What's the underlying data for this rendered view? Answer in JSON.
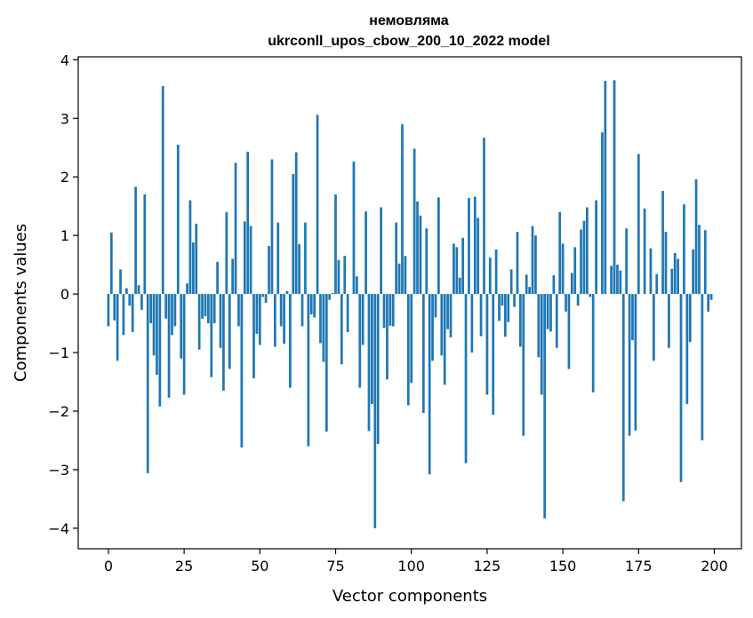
{
  "chart_data": {
    "type": "bar",
    "title": "немовляма",
    "subtitle": "ukrconll_upos_cbow_200_10_2022 model",
    "xlabel": "Vector components",
    "ylabel": "Components values",
    "xlim": [
      -9.95,
      208.95
    ],
    "ylim": [
      -4.35,
      4.05
    ],
    "xticks": [
      0,
      25,
      50,
      75,
      100,
      125,
      150,
      175,
      200
    ],
    "xtick_labels": [
      "0",
      "25",
      "50",
      "75",
      "100",
      "125",
      "150",
      "175",
      "200"
    ],
    "yticks": [
      -4,
      -3,
      -2,
      -1,
      0,
      1,
      2,
      3,
      4
    ],
    "ytick_labels": [
      "−4",
      "−3",
      "−2",
      "−1",
      "0",
      "1",
      "2",
      "3",
      "4"
    ],
    "grid": false,
    "bar_color": "#1f77b4",
    "x": [
      0,
      1,
      2,
      3,
      4,
      5,
      6,
      7,
      8,
      9,
      10,
      11,
      12,
      13,
      14,
      15,
      16,
      17,
      18,
      19,
      20,
      21,
      22,
      23,
      24,
      25,
      26,
      27,
      28,
      29,
      30,
      31,
      32,
      33,
      34,
      35,
      36,
      37,
      38,
      39,
      40,
      41,
      42,
      43,
      44,
      45,
      46,
      47,
      48,
      49,
      50,
      51,
      52,
      53,
      54,
      55,
      56,
      57,
      58,
      59,
      60,
      61,
      62,
      63,
      64,
      65,
      66,
      67,
      68,
      69,
      70,
      71,
      72,
      73,
      74,
      75,
      76,
      77,
      78,
      79,
      80,
      81,
      82,
      83,
      84,
      85,
      86,
      87,
      88,
      89,
      90,
      91,
      92,
      93,
      94,
      95,
      96,
      97,
      98,
      99,
      100,
      101,
      102,
      103,
      104,
      105,
      106,
      107,
      108,
      109,
      110,
      111,
      112,
      113,
      114,
      115,
      116,
      117,
      118,
      119,
      120,
      121,
      122,
      123,
      124,
      125,
      126,
      127,
      128,
      129,
      130,
      131,
      132,
      133,
      134,
      135,
      136,
      137,
      138,
      139,
      140,
      141,
      142,
      143,
      144,
      145,
      146,
      147,
      148,
      149,
      150,
      151,
      152,
      153,
      154,
      155,
      156,
      157,
      158,
      159,
      160,
      161,
      162,
      163,
      164,
      165,
      166,
      167,
      168,
      169,
      170,
      171,
      172,
      173,
      174,
      175,
      176,
      177,
      178,
      179,
      180,
      181,
      182,
      183,
      184,
      185,
      186,
      187,
      188,
      189,
      190,
      191,
      192,
      193,
      194,
      195,
      196,
      197,
      198,
      199
    ],
    "values": [
      -0.55,
      1.05,
      -0.45,
      -1.14,
      0.42,
      -0.7,
      0.1,
      -0.2,
      -0.65,
      1.83,
      0.15,
      -0.27,
      1.7,
      -3.06,
      -0.5,
      -1.05,
      -1.38,
      -1.92,
      3.55,
      -0.42,
      -1.77,
      -0.7,
      -0.55,
      2.55,
      -1.1,
      -1.72,
      0.18,
      1.6,
      0.88,
      1.2,
      -0.95,
      -0.42,
      -0.38,
      -0.5,
      -1.42,
      -0.5,
      0.55,
      -0.92,
      -1.65,
      1.4,
      -1.28,
      0.6,
      2.24,
      -0.55,
      -2.62,
      1.24,
      2.43,
      1.16,
      -1.44,
      -0.68,
      -0.87,
      -0.05,
      -0.15,
      0.82,
      2.3,
      -0.9,
      1.22,
      -0.55,
      -0.85,
      0.05,
      -1.6,
      2.05,
      2.42,
      0.85,
      -0.55,
      1.22,
      -2.6,
      -0.35,
      -0.4,
      3.06,
      -0.84,
      -1.16,
      -2.35,
      -0.1,
      0.02,
      1.7,
      0.58,
      -1.2,
      0.65,
      -0.65,
      0.0,
      2.26,
      0.3,
      -1.6,
      -0.87,
      1.41,
      -2.34,
      -1.88,
      -4.0,
      -2.56,
      1.48,
      -0.58,
      -1.46,
      -0.54,
      -0.55,
      1.22,
      0.52,
      2.9,
      0.65,
      -1.9,
      -1.52,
      2.48,
      1.58,
      1.34,
      -2.03,
      1.12,
      -3.08,
      -1.14,
      -0.4,
      1.65,
      -1.05,
      -1.55,
      -0.6,
      -0.74,
      0.86,
      0.8,
      0.28,
      0.96,
      -2.89,
      1.64,
      -1.0,
      1.66,
      1.3,
      -0.72,
      2.67,
      -1.72,
      0.62,
      -2.06,
      0.76,
      -0.46,
      -0.2,
      -0.73,
      -0.48,
      0.42,
      -0.22,
      1.06,
      -0.9,
      -2.42,
      0.33,
      0.12,
      1.16,
      1.0,
      -1.08,
      -1.72,
      -3.83,
      -0.6,
      -0.64,
      0.32,
      -0.92,
      1.4,
      0.86,
      -0.3,
      -1.28,
      0.36,
      0.8,
      -0.2,
      1.1,
      1.25,
      1.48,
      -0.05,
      -1.68,
      1.6,
      0.0,
      2.76,
      3.64,
      0.0,
      0.48,
      3.65,
      0.5,
      0.4,
      -3.54,
      1.12,
      -2.42,
      -0.79,
      -2.33,
      2.39,
      0.0,
      1.46,
      0.0,
      0.78,
      -1.14,
      0.34,
      0.0,
      1.76,
      1.06,
      -0.92,
      0.43,
      0.7,
      0.6,
      -3.21,
      1.53,
      -1.88,
      -0.82,
      0.76,
      1.96,
      1.18,
      -2.5,
      1.09,
      -0.3,
      -0.1
    ]
  }
}
